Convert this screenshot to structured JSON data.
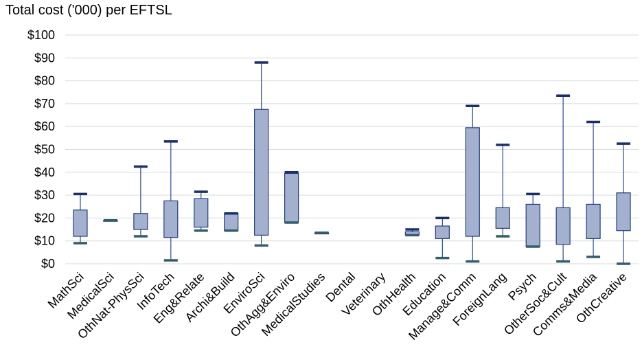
{
  "chart_data": {
    "type": "boxplot",
    "title": "Total cost ('000) per EFTSL",
    "xlabel": "",
    "ylabel": "",
    "ylim": [
      0,
      100
    ],
    "y_ticks": [
      0,
      10,
      20,
      30,
      40,
      50,
      60,
      70,
      80,
      90,
      100
    ],
    "y_tick_labels": [
      "$0",
      "$10",
      "$20",
      "$30",
      "$40",
      "$50",
      "$60",
      "$70",
      "$80",
      "$90",
      "$100"
    ],
    "grid": true,
    "legend": "none",
    "colors": {
      "box_fill": "#a3b1cf",
      "box_stroke": "#1f3d8a",
      "whisker": "#2a4a9a",
      "cap_max": "#1a2e6e",
      "cap_min": "#2e5f6a",
      "grid": "#d9d9d9"
    },
    "categories": [
      "MathSci",
      "MedicalSci",
      "OthNat-PhysSci",
      "InfoTech",
      "Eng&Relate",
      "Archi&Build",
      "EnviroSci",
      "OthAgg&Enviro",
      "MedicalStudies",
      "Dental",
      "Veterinary",
      "OthHealth",
      "Education",
      "Manage&Comm",
      "ForeignLang",
      "Psych",
      "OtherSoc&Cult",
      "Comms&Media",
      "OthCreative"
    ],
    "series": [
      {
        "values": [
          {
            "min": 9,
            "q1": 12,
            "q3": 23.5,
            "max": 30.5
          },
          {
            "min": 19,
            "q1": 19,
            "q3": 19,
            "max": 19
          },
          {
            "min": 12,
            "q1": 15,
            "q3": 22,
            "max": 42.5
          },
          {
            "min": 1.5,
            "q1": 11.5,
            "q3": 27.5,
            "max": 53.5
          },
          {
            "min": 14.5,
            "q1": 16,
            "q3": 28.5,
            "max": 31.5
          },
          {
            "min": 14.5,
            "q1": 14.5,
            "q3": 22,
            "max": 22
          },
          {
            "min": 8,
            "q1": 12.5,
            "q3": 67.5,
            "max": 88
          },
          {
            "min": 18,
            "q1": 18,
            "q3": 39.5,
            "max": 40
          },
          {
            "min": 13.5,
            "q1": 13.5,
            "q3": 13.5,
            "max": 13.5
          },
          null,
          null,
          {
            "min": 12.5,
            "q1": 12.5,
            "q3": 14,
            "max": 15
          },
          {
            "min": 2.5,
            "q1": 11,
            "q3": 16.5,
            "max": 20
          },
          {
            "min": 1,
            "q1": 12,
            "q3": 59.5,
            "max": 69
          },
          {
            "min": 12,
            "q1": 15.5,
            "q3": 24.5,
            "max": 52
          },
          {
            "min": 7.5,
            "q1": 7.5,
            "q3": 26,
            "max": 30.5
          },
          {
            "min": 1,
            "q1": 8.5,
            "q3": 24.5,
            "max": 73.5
          },
          {
            "min": 3,
            "q1": 11,
            "q3": 26,
            "max": 62
          },
          {
            "min": 0,
            "q1": 14.5,
            "q3": 31,
            "max": 52.5
          }
        ]
      }
    ]
  }
}
